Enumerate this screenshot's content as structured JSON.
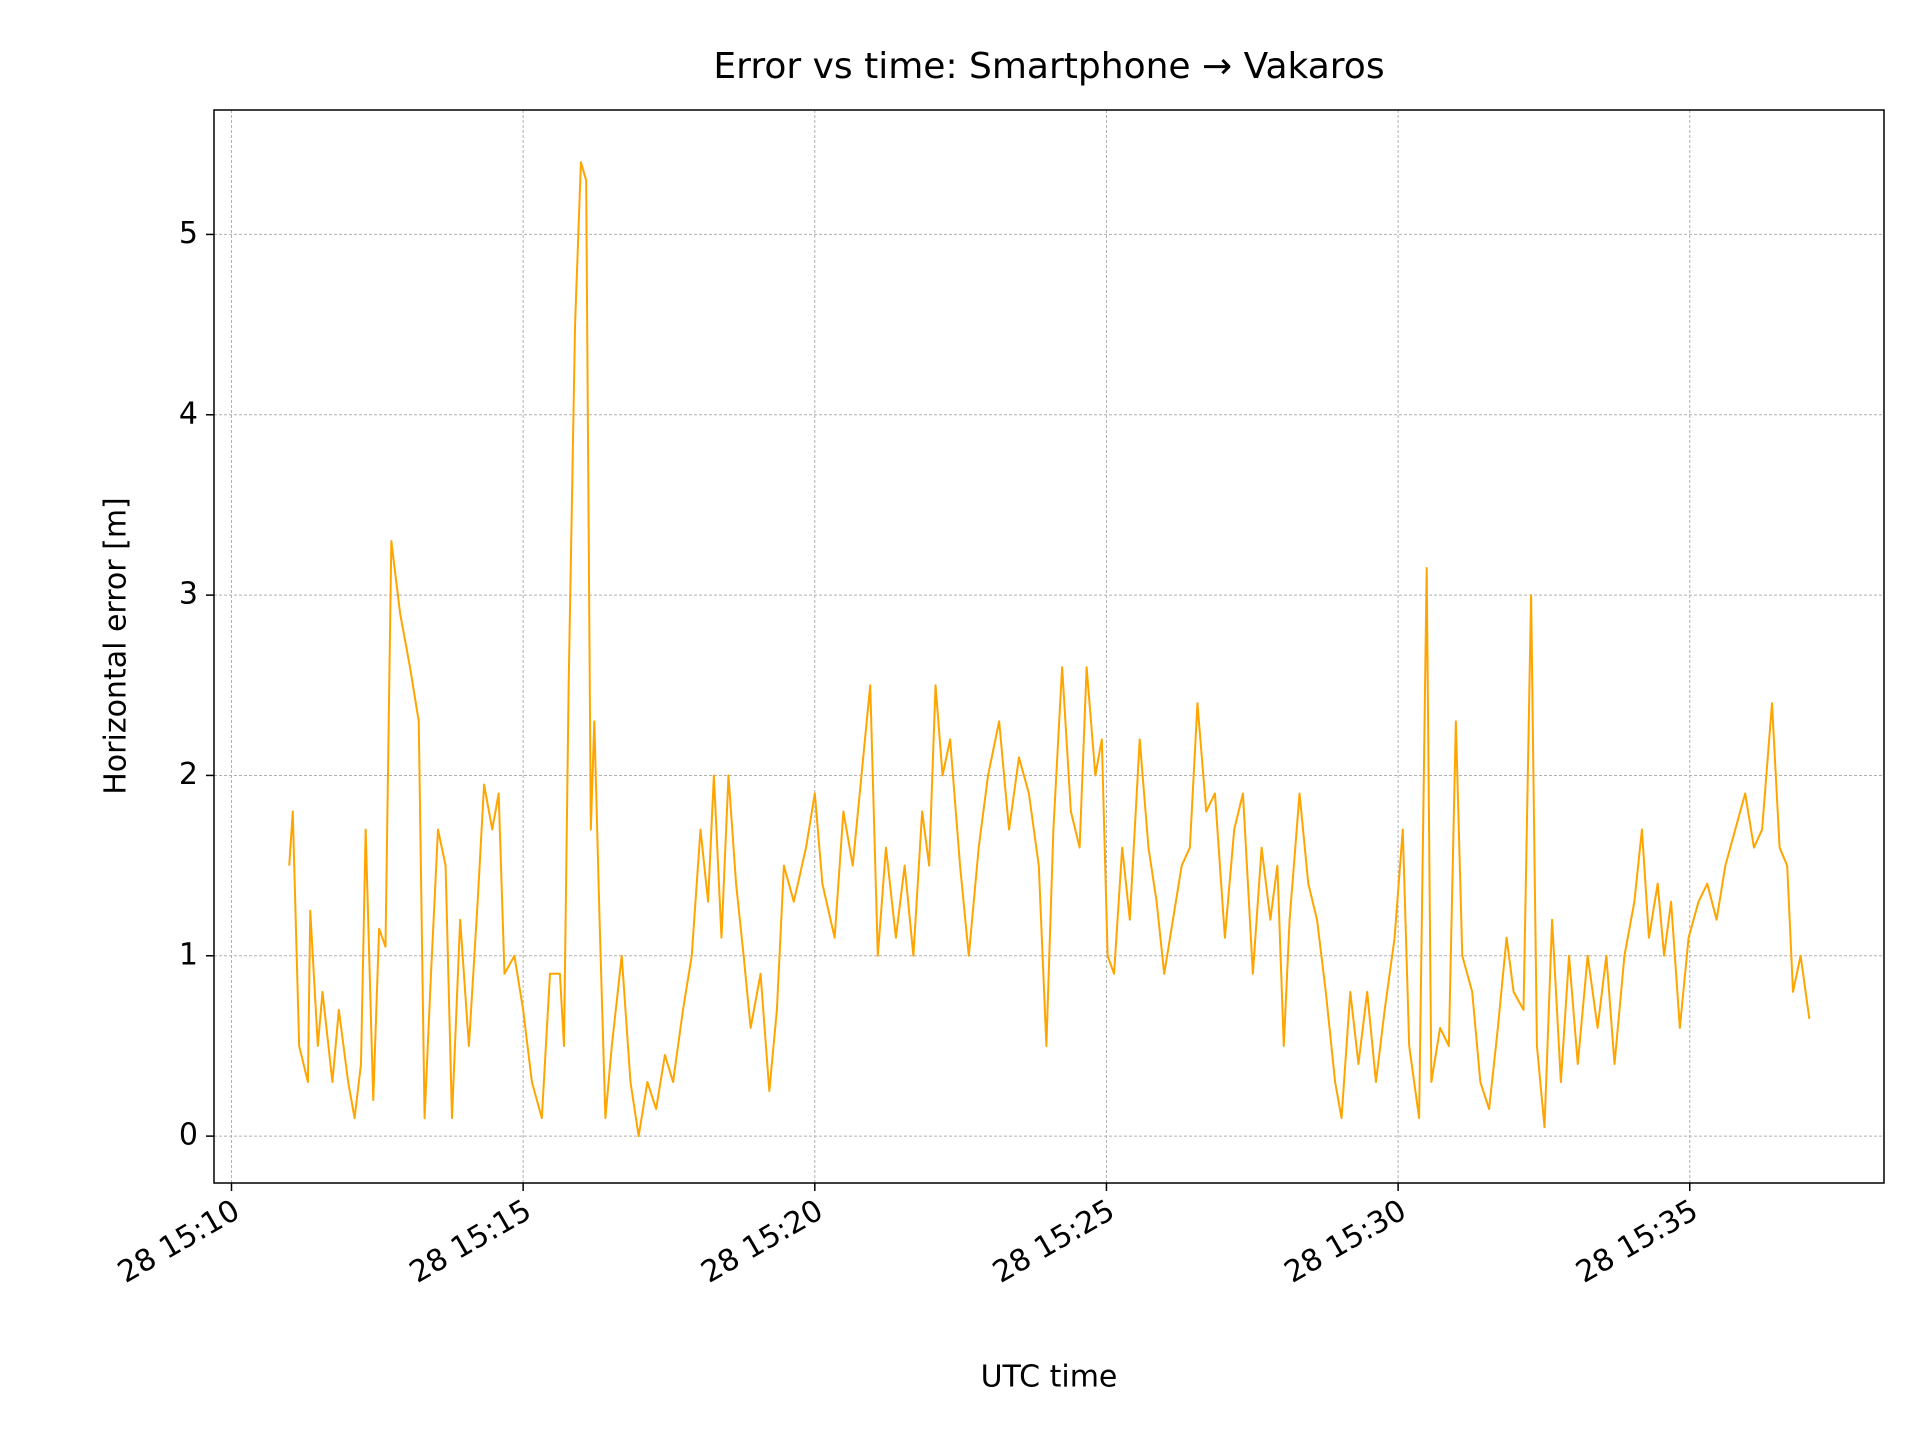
{
  "chart_data": {
    "type": "line",
    "title": "Error vs time: Smartphone → Vakaros",
    "xlabel": "UTC time",
    "ylabel": "Horizontal error [m]",
    "color": "#ffa500",
    "grid": true,
    "xlim": [
      9.7,
      38.33
    ],
    "ylim": [
      -0.26,
      5.69
    ],
    "xticks": [
      {
        "value": 10,
        "label": "28 15:10"
      },
      {
        "value": 15,
        "label": "28 15:15"
      },
      {
        "value": 20,
        "label": "28 15:20"
      },
      {
        "value": 25,
        "label": "28 15:25"
      },
      {
        "value": 30,
        "label": "28 15:30"
      },
      {
        "value": 35,
        "label": "28 15:35"
      }
    ],
    "yticks": [
      0,
      1,
      2,
      3,
      4,
      5
    ],
    "x": [
      10.99,
      11.05,
      11.16,
      11.31,
      11.35,
      11.48,
      11.56,
      11.73,
      11.84,
      12.0,
      12.11,
      12.22,
      12.3,
      12.43,
      12.53,
      12.64,
      12.74,
      12.89,
      13.06,
      13.21,
      13.31,
      13.42,
      13.54,
      13.67,
      13.78,
      13.92,
      14.07,
      14.22,
      14.33,
      14.47,
      14.58,
      14.68,
      14.85,
      15.0,
      15.15,
      15.32,
      15.46,
      15.63,
      15.7,
      15.78,
      15.89,
      15.99,
      16.08,
      16.16,
      16.22,
      16.31,
      16.41,
      16.52,
      16.69,
      16.84,
      16.98,
      17.13,
      17.28,
      17.43,
      17.57,
      17.74,
      17.89,
      18.04,
      18.17,
      18.27,
      18.4,
      18.52,
      18.65,
      18.78,
      18.9,
      19.07,
      19.22,
      19.35,
      19.47,
      19.64,
      19.85,
      20.0,
      20.13,
      20.34,
      20.49,
      20.65,
      20.8,
      20.95,
      21.08,
      21.22,
      21.39,
      21.54,
      21.69,
      21.84,
      21.96,
      22.07,
      22.19,
      22.32,
      22.49,
      22.64,
      22.81,
      22.97,
      23.16,
      23.33,
      23.5,
      23.67,
      23.84,
      23.97,
      24.09,
      24.24,
      24.39,
      24.54,
      24.66,
      24.81,
      24.92,
      25.02,
      25.13,
      25.27,
      25.4,
      25.57,
      25.72,
      25.86,
      25.99,
      26.14,
      26.29,
      26.43,
      26.56,
      26.71,
      26.86,
      27.03,
      27.19,
      27.34,
      27.51,
      27.66,
      27.81,
      27.93,
      28.04,
      28.14,
      28.31,
      28.46,
      28.61,
      28.76,
      28.92,
      29.03,
      29.18,
      29.32,
      29.47,
      29.62,
      29.77,
      29.94,
      30.08,
      30.19,
      30.36,
      30.49,
      30.57,
      30.72,
      30.87,
      30.99,
      31.1,
      31.27,
      31.41,
      31.56,
      31.71,
      31.86,
      31.98,
      32.15,
      32.28,
      32.38,
      32.51,
      32.64,
      32.79,
      32.93,
      33.08,
      33.25,
      33.42,
      33.57,
      33.71,
      33.88,
      34.05,
      34.18,
      34.3,
      34.45,
      34.56,
      34.68,
      34.83,
      34.98,
      35.15,
      35.3,
      35.46,
      35.61,
      35.78,
      35.95,
      36.1,
      36.24,
      36.41,
      36.54,
      36.67,
      36.77,
      36.9,
      37.05
    ],
    "values": [
      1.5,
      1.8,
      0.5,
      0.3,
      1.25,
      0.5,
      0.8,
      0.3,
      0.7,
      0.3,
      0.1,
      0.4,
      1.7,
      0.2,
      1.15,
      1.05,
      3.3,
      2.9,
      2.6,
      2.3,
      0.1,
      0.9,
      1.7,
      1.5,
      0.1,
      1.2,
      0.5,
      1.3,
      1.95,
      1.7,
      1.9,
      0.9,
      1.0,
      0.7,
      0.3,
      0.1,
      0.9,
      0.9,
      0.5,
      2.5,
      4.5,
      5.4,
      5.3,
      1.7,
      2.3,
      1.2,
      0.1,
      0.5,
      1.0,
      0.3,
      0.0,
      0.3,
      0.15,
      0.45,
      0.3,
      0.7,
      1.0,
      1.7,
      1.3,
      2.0,
      1.1,
      2.0,
      1.4,
      1.0,
      0.6,
      0.9,
      0.25,
      0.7,
      1.5,
      1.3,
      1.6,
      1.9,
      1.4,
      1.1,
      1.8,
      1.5,
      2.0,
      2.5,
      1.0,
      1.6,
      1.1,
      1.5,
      1.0,
      1.8,
      1.5,
      2.5,
      2.0,
      2.2,
      1.5,
      1.0,
      1.6,
      2.0,
      2.3,
      1.7,
      2.1,
      1.9,
      1.5,
      0.5,
      1.7,
      2.6,
      1.8,
      1.6,
      2.6,
      2.0,
      2.2,
      1.0,
      0.9,
      1.6,
      1.2,
      2.2,
      1.6,
      1.3,
      0.9,
      1.2,
      1.5,
      1.6,
      2.4,
      1.8,
      1.9,
      1.1,
      1.7,
      1.9,
      0.9,
      1.6,
      1.2,
      1.5,
      0.5,
      1.2,
      1.9,
      1.4,
      1.2,
      0.8,
      0.3,
      0.1,
      0.8,
      0.4,
      0.8,
      0.3,
      0.7,
      1.1,
      1.7,
      0.5,
      0.1,
      3.15,
      0.3,
      0.6,
      0.5,
      2.3,
      1.0,
      0.8,
      0.3,
      0.15,
      0.6,
      1.1,
      0.8,
      0.7,
      3.0,
      0.5,
      0.05,
      1.2,
      0.3,
      1.0,
      0.4,
      1.0,
      0.6,
      1.0,
      0.4,
      1.0,
      1.3,
      1.7,
      1.1,
      1.4,
      1.0,
      1.3,
      0.6,
      1.1,
      1.3,
      1.4,
      1.2,
      1.5,
      1.7,
      1.9,
      1.6,
      1.7,
      2.4,
      1.6,
      1.5,
      0.8,
      1.0,
      0.65
    ]
  }
}
